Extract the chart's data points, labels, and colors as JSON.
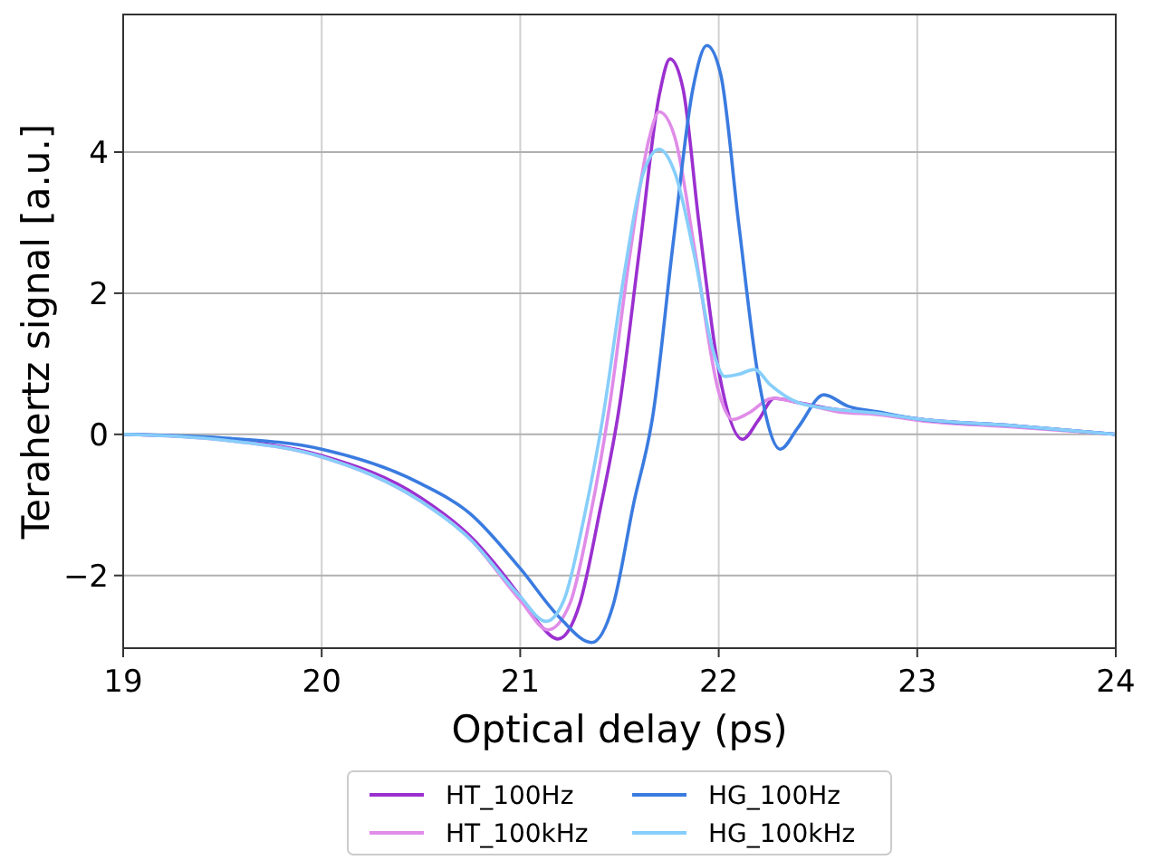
{
  "chart_data": {
    "type": "line",
    "xlabel": "Optical delay (ps)",
    "ylabel": "Terahertz signal [a.u.]",
    "xlim": [
      19,
      24
    ],
    "xticks": [
      19,
      20,
      21,
      22,
      23,
      24
    ],
    "ylim": [
      -3.03,
      5.95
    ],
    "yticks": [
      -2,
      0,
      2,
      4
    ],
    "grid": true,
    "legend": "bottom",
    "series": [
      {
        "name": "HT_100Hz",
        "color": "#9b30d0",
        "x": [
          19,
          19.5,
          20,
          20.5,
          20.75,
          21,
          21.1,
          21.19,
          21.3,
          21.4,
          21.5,
          21.6,
          21.7,
          21.755,
          21.82,
          21.9,
          22.0,
          22.12,
          22.2,
          22.28,
          22.4,
          22.6,
          22.8,
          23,
          23.5,
          24
        ],
        "values": [
          0,
          -0.07,
          -0.3,
          -0.9,
          -1.45,
          -2.3,
          -2.7,
          -2.9,
          -2.4,
          -1.1,
          0.4,
          2.6,
          4.8,
          5.32,
          4.9,
          3.0,
          0.9,
          -0.07,
          0.2,
          0.51,
          0.45,
          0.35,
          0.3,
          0.22,
          0.12,
          0
        ]
      },
      {
        "name": "HT_100kHz",
        "color": "#e08ce8",
        "x": [
          19,
          19.5,
          20,
          20.5,
          20.75,
          21,
          21.14,
          21.25,
          21.35,
          21.45,
          21.55,
          21.65,
          21.7,
          21.78,
          21.88,
          22.0,
          22.07,
          22.15,
          22.27,
          22.4,
          22.6,
          22.8,
          23,
          23.5,
          24
        ],
        "values": [
          0,
          -0.08,
          -0.32,
          -0.95,
          -1.49,
          -2.35,
          -2.77,
          -2.4,
          -1.2,
          0.4,
          2.5,
          4.2,
          4.57,
          4.2,
          2.6,
          0.6,
          0.21,
          0.3,
          0.51,
          0.45,
          0.32,
          0.28,
          0.2,
          0.1,
          0
        ]
      },
      {
        "name": "HG_100Hz",
        "color": "#3a7be0",
        "x": [
          19,
          19.5,
          20,
          20.5,
          20.75,
          21,
          21.2,
          21.36,
          21.47,
          21.57,
          21.67,
          21.77,
          21.87,
          21.94,
          22.01,
          22.1,
          22.2,
          22.31,
          22.4,
          22.53,
          22.65,
          22.8,
          23,
          23.5,
          24
        ],
        "values": [
          0,
          -0.05,
          -0.21,
          -0.7,
          -1.13,
          -1.9,
          -2.6,
          -2.95,
          -2.4,
          -1.0,
          0.3,
          2.7,
          4.9,
          5.51,
          5.1,
          3.0,
          0.8,
          -0.21,
          0.1,
          0.56,
          0.4,
          0.32,
          0.22,
          0.12,
          0
        ]
      },
      {
        "name": "HG_100kHz",
        "color": "#87cefa",
        "x": [
          19,
          19.5,
          20,
          20.5,
          20.75,
          21,
          21.13,
          21.22,
          21.32,
          21.42,
          21.52,
          21.62,
          21.7,
          21.78,
          21.88,
          21.97,
          22.03,
          22.1,
          22.18,
          22.26,
          22.4,
          22.6,
          22.8,
          23,
          23.5,
          24
        ],
        "values": [
          0,
          -0.08,
          -0.32,
          -0.95,
          -1.49,
          -2.3,
          -2.65,
          -2.35,
          -1.2,
          0.3,
          2.2,
          3.7,
          4.04,
          3.7,
          2.5,
          1.2,
          0.82,
          0.85,
          0.92,
          0.7,
          0.45,
          0.35,
          0.3,
          0.22,
          0.12,
          0
        ]
      }
    ]
  }
}
